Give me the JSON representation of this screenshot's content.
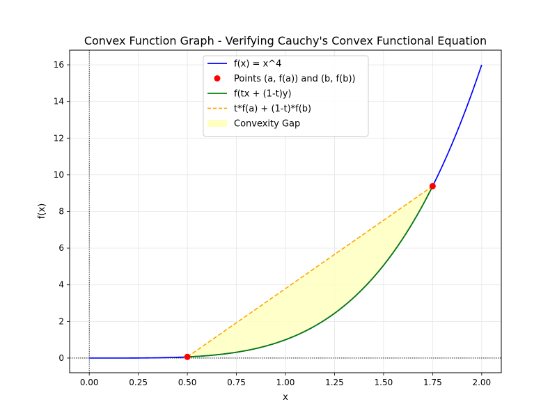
{
  "chart_data": {
    "type": "line",
    "title": "Convex Function Graph - Verifying Cauchy's Convex Functional Equation",
    "xlabel": "x",
    "ylabel": "f(x)",
    "xlim": [
      -0.1,
      2.1
    ],
    "ylim": [
      -0.8,
      16.8
    ],
    "xticks": [
      0.0,
      0.25,
      0.5,
      0.75,
      1.0,
      1.25,
      1.5,
      1.75,
      2.0
    ],
    "xtick_labels": [
      "0.00",
      "0.25",
      "0.50",
      "0.75",
      "1.00",
      "1.25",
      "1.50",
      "1.75",
      "2.00"
    ],
    "yticks": [
      0,
      2,
      4,
      6,
      8,
      10,
      12,
      14,
      16
    ],
    "ytick_labels": [
      "0",
      "2",
      "4",
      "6",
      "8",
      "10",
      "12",
      "14",
      "16"
    ],
    "grid": true,
    "legend_position": "top-center",
    "reference_lines": [
      {
        "axis": "x",
        "value": 0,
        "style": "dotted",
        "color": "#000000"
      },
      {
        "axis": "y",
        "value": 0,
        "style": "dotted",
        "color": "#000000"
      }
    ],
    "series": [
      {
        "name": "f(x) = x^4",
        "kind": "line",
        "color": "#0000ff",
        "style": "solid",
        "x": [
          0.0,
          0.1,
          0.2,
          0.3,
          0.4,
          0.5,
          0.6,
          0.7,
          0.8,
          0.9,
          1.0,
          1.1,
          1.2,
          1.3,
          1.4,
          1.5,
          1.6,
          1.7,
          1.75,
          1.8,
          1.9,
          2.0
        ],
        "y": [
          0.0,
          0.0001,
          0.0016,
          0.0081,
          0.0256,
          0.0625,
          0.1296,
          0.2401,
          0.4096,
          0.6561,
          1.0,
          1.4641,
          2.0736,
          2.8561,
          3.8416,
          5.0625,
          6.5536,
          8.3521,
          9.3789,
          10.4976,
          13.0321,
          16.0
        ]
      },
      {
        "name": "Points (a, f(a)) and (b, f(b))",
        "kind": "scatter",
        "color": "#ff0000",
        "x": [
          0.5,
          1.75
        ],
        "y": [
          0.0625,
          9.3789
        ]
      },
      {
        "name": "f(tx + (1-t)y)",
        "kind": "line",
        "color": "#008000",
        "style": "solid",
        "x": [
          0.5,
          0.6,
          0.7,
          0.8,
          0.9,
          1.0,
          1.1,
          1.2,
          1.3,
          1.4,
          1.5,
          1.6,
          1.7,
          1.75
        ],
        "y": [
          0.0625,
          0.1296,
          0.2401,
          0.4096,
          0.6561,
          1.0,
          1.4641,
          2.0736,
          2.8561,
          3.8416,
          5.0625,
          6.5536,
          8.3521,
          9.3789
        ]
      },
      {
        "name": "t*f(a) + (1-t)*f(b)",
        "kind": "line",
        "color": "#ffa500",
        "style": "dashed",
        "x": [
          0.5,
          1.75
        ],
        "y": [
          0.0625,
          9.3789
        ]
      },
      {
        "name": "Convexity Gap",
        "kind": "fill_between",
        "color": "#ffffc0",
        "x_range": [
          0.5,
          1.75
        ]
      }
    ]
  }
}
